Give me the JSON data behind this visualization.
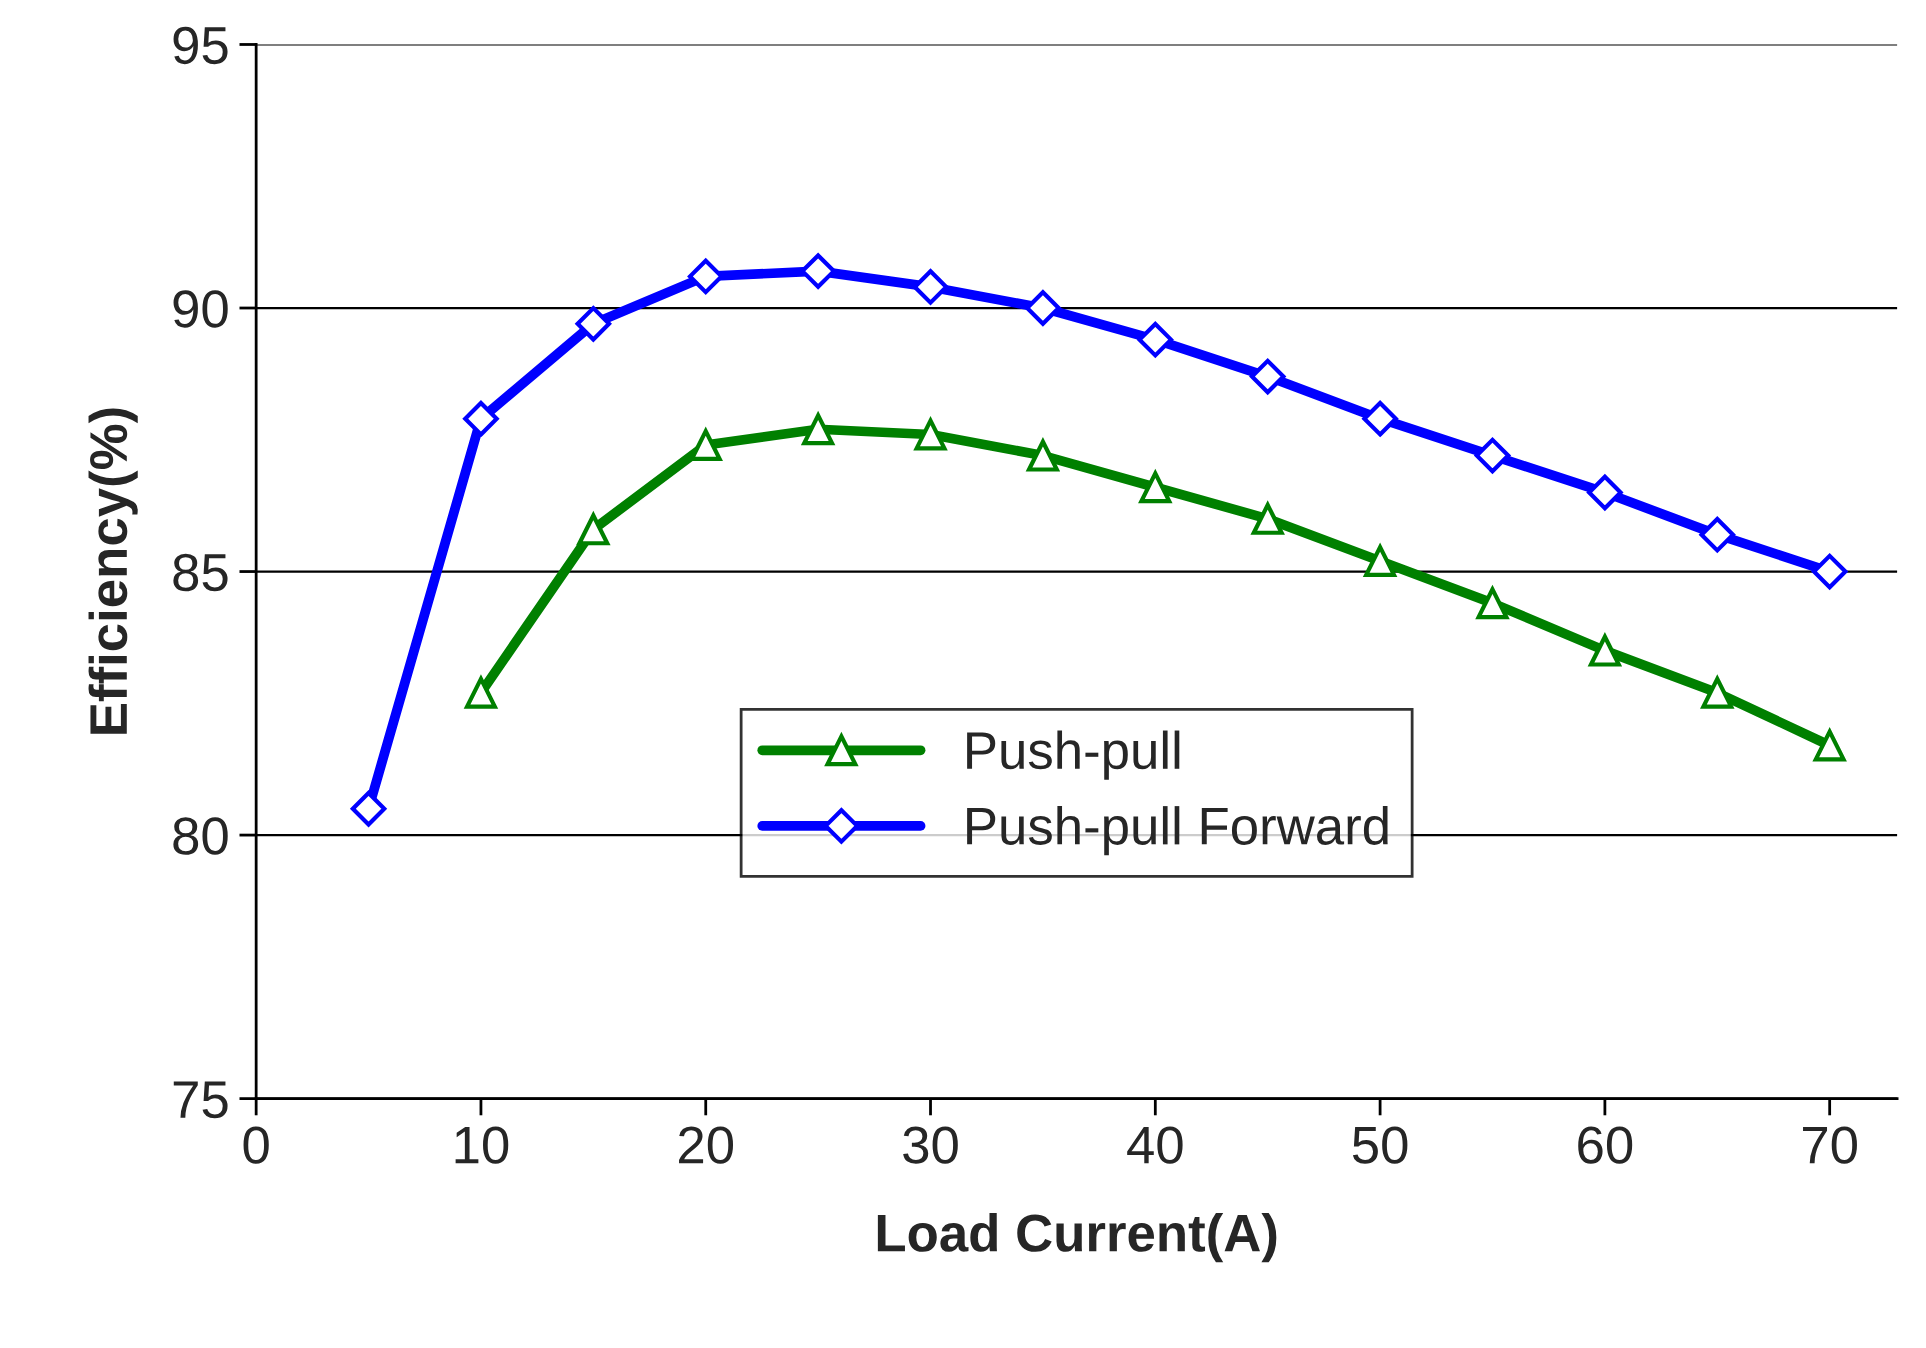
{
  "chart_data": {
    "type": "line",
    "xlabel": "Load Current(A)",
    "ylabel": "Efficiency(%)",
    "x": [
      5,
      10,
      15,
      20,
      25,
      30,
      35,
      40,
      45,
      50,
      55,
      60,
      65,
      70
    ],
    "series": [
      {
        "name": "Push-pull",
        "color": "#008000",
        "marker": "triangle",
        "values": [
          null,
          82.7,
          85.8,
          87.4,
          87.7,
          87.6,
          87.2,
          86.6,
          86.0,
          85.2,
          84.4,
          83.5,
          82.7,
          81.7
        ]
      },
      {
        "name": "Push-pull Forward",
        "color": "#0000ff",
        "marker": "diamond",
        "values": [
          80.5,
          87.9,
          89.7,
          90.6,
          90.7,
          90.4,
          90.0,
          89.4,
          88.7,
          87.9,
          87.2,
          86.5,
          85.7,
          85.0
        ]
      }
    ],
    "xlim": [
      0,
      73
    ],
    "xticks": [
      0,
      10,
      20,
      30,
      40,
      50,
      60,
      70
    ],
    "ylim": [
      75,
      95
    ],
    "yticks": [
      75,
      80,
      85,
      90,
      95
    ],
    "grid": "y",
    "legend": "bottom"
  }
}
